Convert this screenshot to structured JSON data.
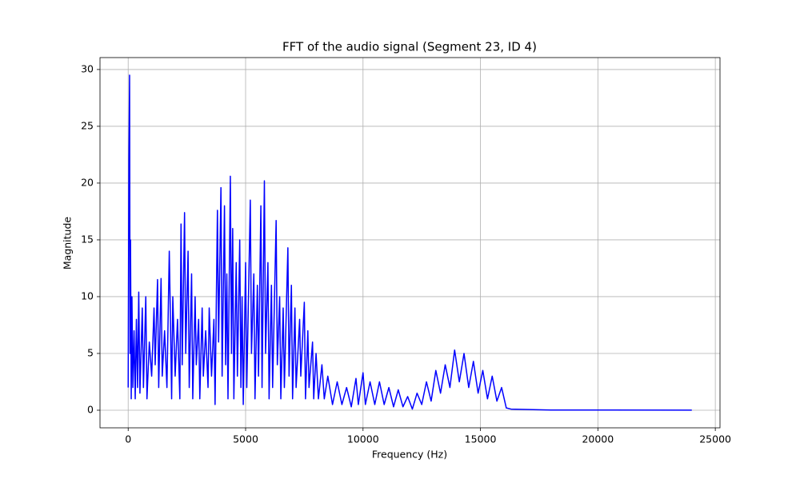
{
  "chart_data": {
    "type": "line",
    "title": "FFT of the audio signal (Segment 23, ID 4)",
    "x_label": "Frequency (Hz)",
    "y_label": "Magnitude",
    "xlim": [
      -1200,
      25200
    ],
    "ylim": [
      -1.55,
      31.05
    ],
    "xticks": [
      0,
      5000,
      10000,
      15000,
      20000,
      25000
    ],
    "yticks": [
      0,
      5,
      10,
      15,
      20,
      25,
      30
    ],
    "grid": true,
    "series": [
      {
        "color": "#0000ff",
        "x": [
          0,
          30,
          60,
          80,
          100,
          130,
          160,
          200,
          250,
          300,
          350,
          400,
          450,
          500,
          600,
          650,
          750,
          800,
          900,
          1000,
          1100,
          1150,
          1250,
          1300,
          1400,
          1450,
          1550,
          1650,
          1750,
          1800,
          1850,
          1900,
          2000,
          2100,
          2200,
          2250,
          2300,
          2400,
          2450,
          2550,
          2600,
          2700,
          2750,
          2850,
          2900,
          3000,
          3050,
          3150,
          3200,
          3300,
          3400,
          3450,
          3550,
          3650,
          3700,
          3800,
          3850,
          3950,
          4000,
          4100,
          4150,
          4200,
          4250,
          4350,
          4400,
          4450,
          4500,
          4600,
          4650,
          4750,
          4800,
          4850,
          4900,
          5000,
          5050,
          5200,
          5250,
          5350,
          5400,
          5500,
          5550,
          5650,
          5700,
          5800,
          5850,
          5950,
          6000,
          6100,
          6150,
          6300,
          6350,
          6450,
          6500,
          6600,
          6650,
          6800,
          6850,
          6950,
          7000,
          7100,
          7150,
          7300,
          7350,
          7500,
          7550,
          7650,
          7700,
          7850,
          7900,
          8000,
          8100,
          8250,
          8350,
          8500,
          8700,
          8900,
          9100,
          9300,
          9500,
          9700,
          9800,
          10000,
          10100,
          10300,
          10500,
          10700,
          10900,
          11100,
          11300,
          11500,
          11700,
          11900,
          12100,
          12300,
          12500,
          12700,
          12900,
          13100,
          13300,
          13500,
          13700,
          13900,
          14100,
          14300,
          14500,
          14700,
          14900,
          15100,
          15300,
          15500,
          15700,
          15900,
          16100,
          16300,
          18000,
          24000
        ],
        "values": [
          2,
          22,
          29.5,
          5,
          15,
          1,
          10,
          2,
          7,
          1,
          8,
          2,
          10.4,
          1.5,
          9,
          2,
          10,
          1,
          6,
          3,
          9,
          4,
          11.5,
          2,
          11.6,
          3,
          7,
          2,
          14,
          8,
          1,
          10,
          3,
          8,
          1,
          16.4,
          4,
          17.4,
          5,
          14,
          2,
          12,
          1,
          10,
          4,
          8,
          1,
          9,
          3,
          7,
          2,
          9,
          3,
          8,
          0.5,
          17.6,
          6,
          19.6,
          3,
          18,
          4,
          12,
          1,
          20.6,
          5,
          16,
          1,
          13,
          3,
          15,
          2,
          10,
          0.5,
          13,
          2,
          18.5,
          5,
          12,
          1,
          11,
          3,
          18,
          2,
          20.2,
          5,
          13,
          1,
          11,
          2,
          16.7,
          4,
          10,
          1,
          9,
          2,
          14.3,
          3,
          11,
          1,
          9,
          2,
          8,
          3,
          9.5,
          1,
          7,
          2,
          6,
          1,
          5,
          1,
          4,
          1,
          3,
          0.5,
          2.5,
          0.5,
          2,
          0.3,
          2.8,
          0.5,
          3.3,
          0.5,
          2.5,
          0.5,
          2.5,
          0.5,
          2,
          0.3,
          1.8,
          0.3,
          1.2,
          0.1,
          1.5,
          0.5,
          2.5,
          0.8,
          3.5,
          1.5,
          4,
          2,
          5.3,
          2.5,
          5,
          2,
          4.3,
          1.5,
          3.5,
          1,
          3,
          0.8,
          2,
          0.2,
          0.1,
          0.02,
          0.01
        ]
      }
    ]
  }
}
